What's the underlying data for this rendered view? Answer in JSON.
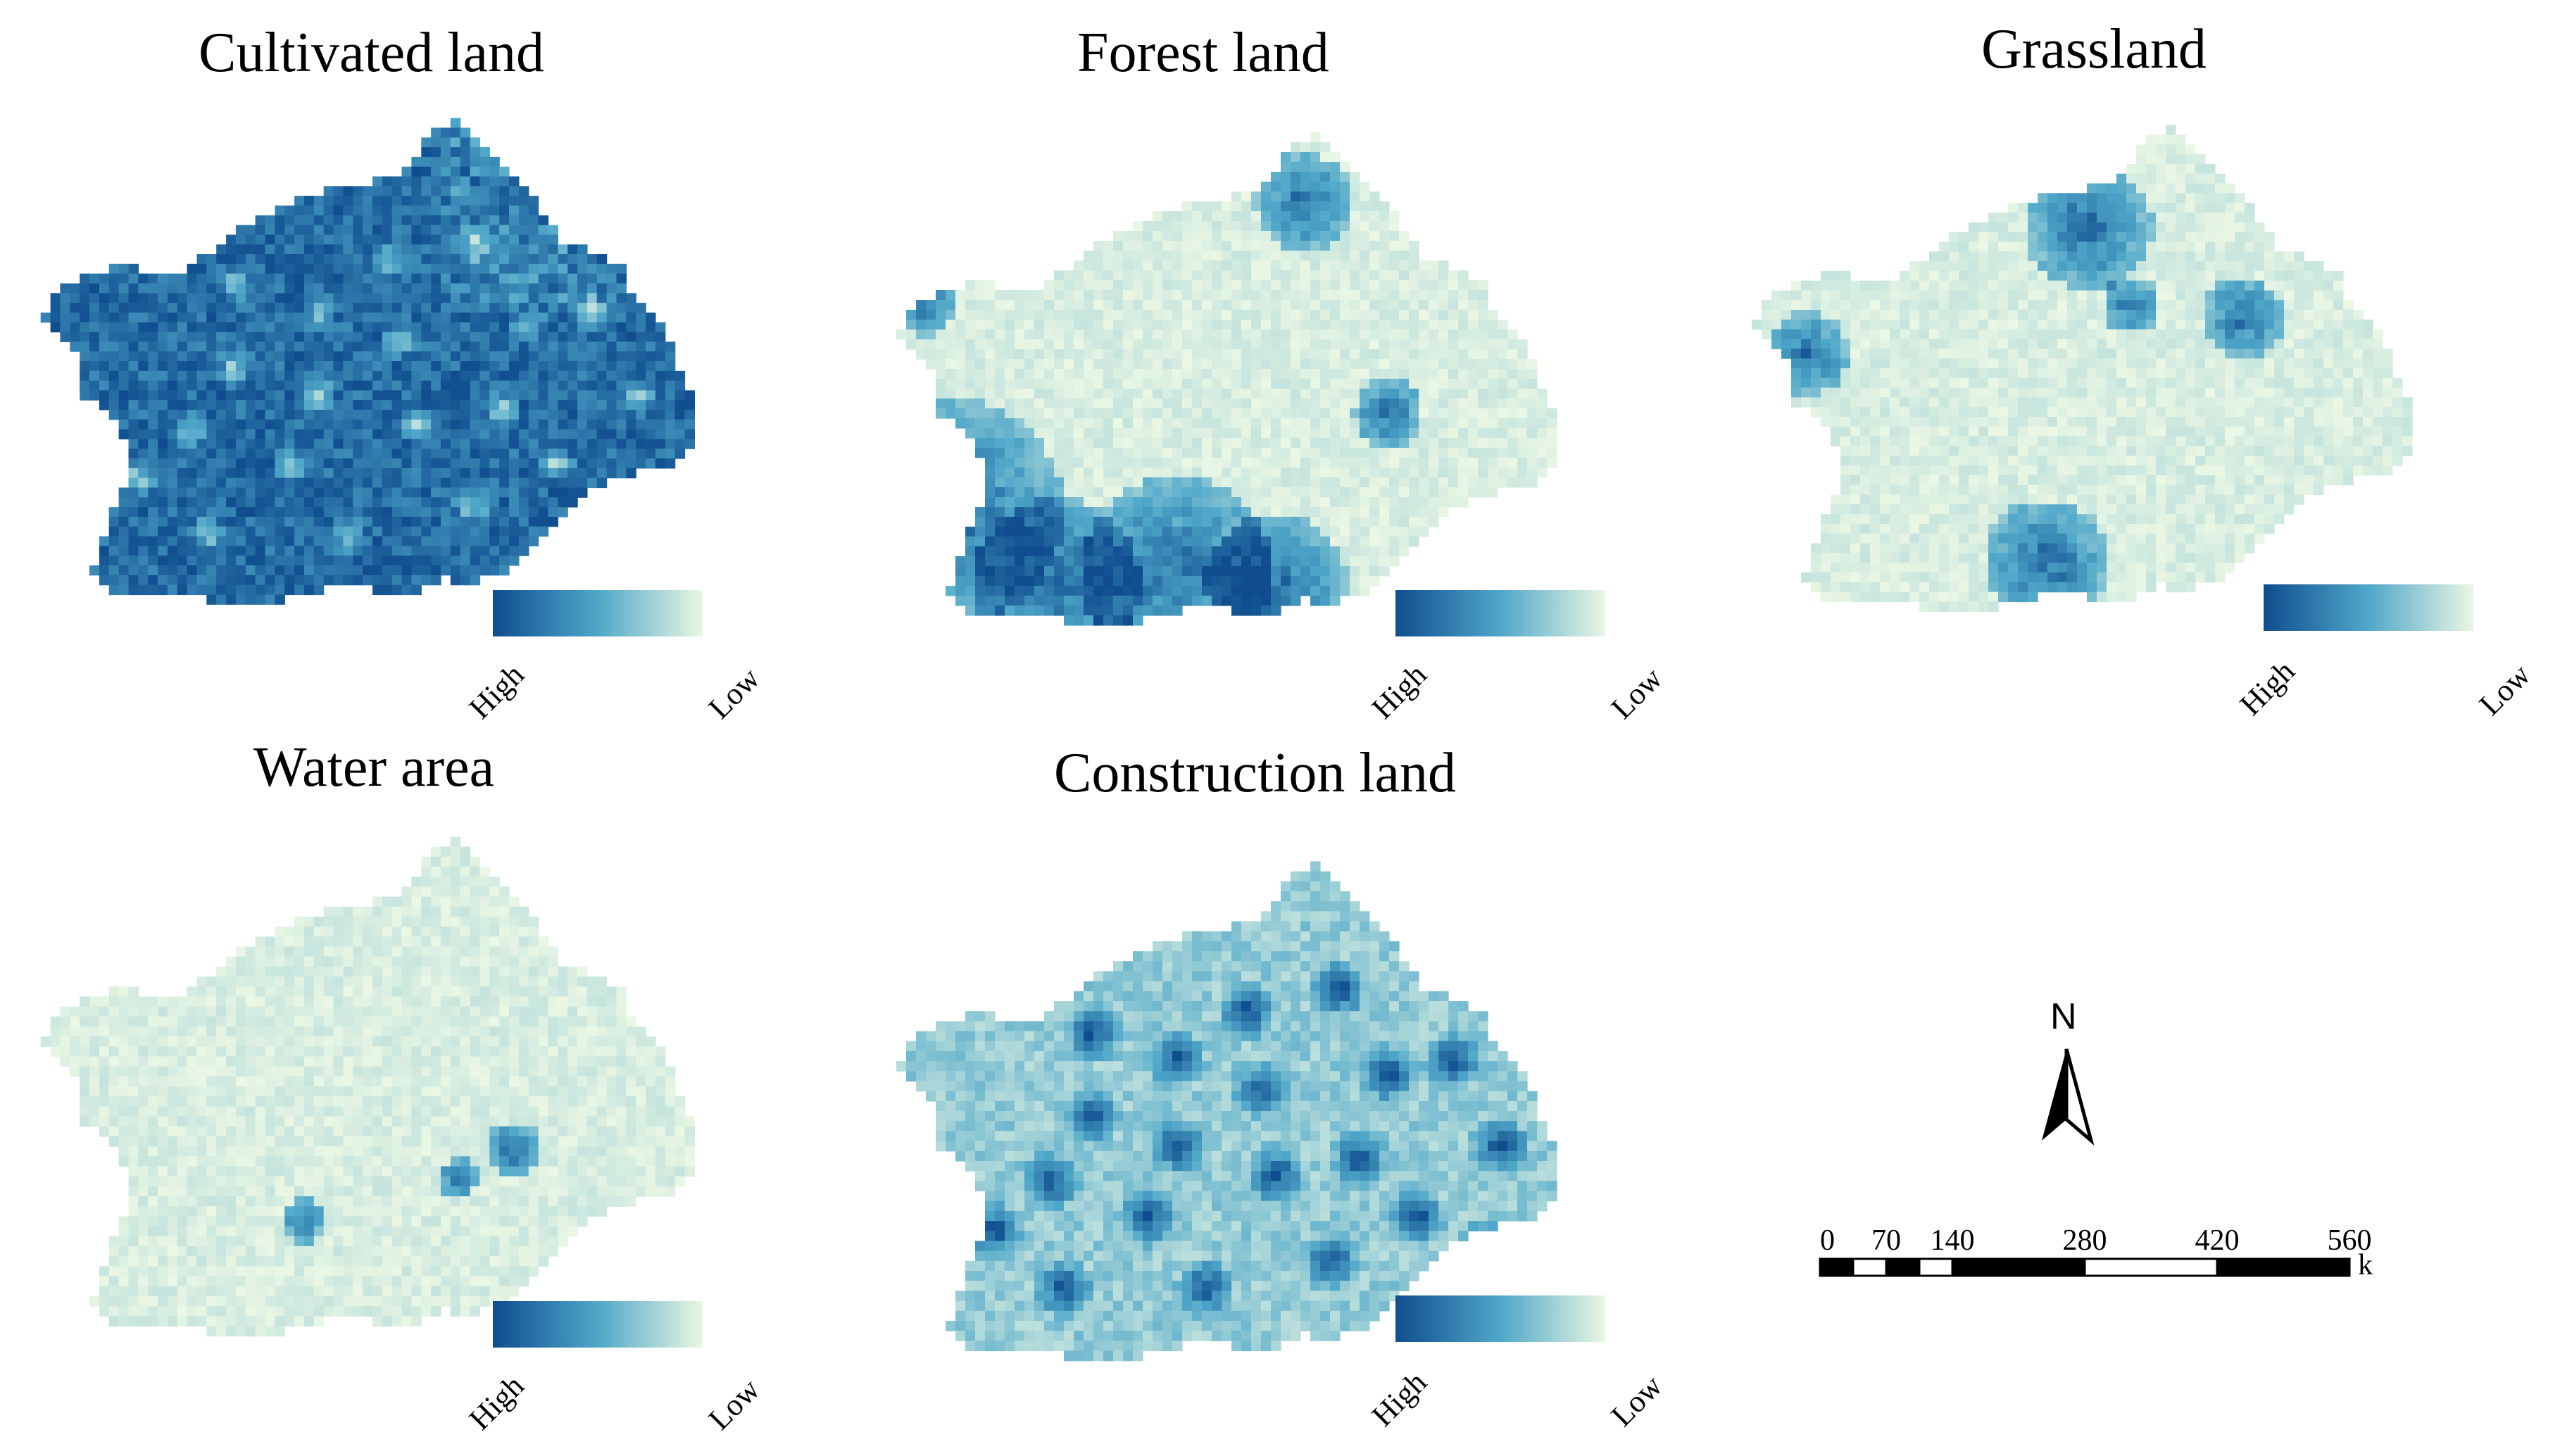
{
  "colors": {
    "high": "#0f4d8f",
    "mid": "#4fa7c9",
    "low": "#eaf7e4",
    "base_light": "#e8f5e2",
    "base_dark": "#1b5f9a"
  },
  "panels": [
    {
      "id": "cultivated",
      "title": "Cultivated land",
      "legend_high": "High",
      "legend_low": "Low",
      "density": 0.85
    },
    {
      "id": "forest",
      "title": "Forest land",
      "legend_high": "High",
      "legend_low": "Low",
      "density": 0.15
    },
    {
      "id": "grassland",
      "title": "Grassland",
      "legend_high": "High",
      "legend_low": "Low",
      "density": 0.12
    },
    {
      "id": "water",
      "title": "Water area",
      "legend_high": "High",
      "legend_low": "Low",
      "density": 0.08
    },
    {
      "id": "construction",
      "title": "Construction land",
      "legend_high": "High",
      "legend_low": "Low",
      "density": 0.35
    }
  ],
  "north_arrow": {
    "label": "N"
  },
  "scale_bar": {
    "ticks": [
      "0",
      "70",
      "140",
      "280",
      "420",
      "560"
    ],
    "unit": "km"
  }
}
